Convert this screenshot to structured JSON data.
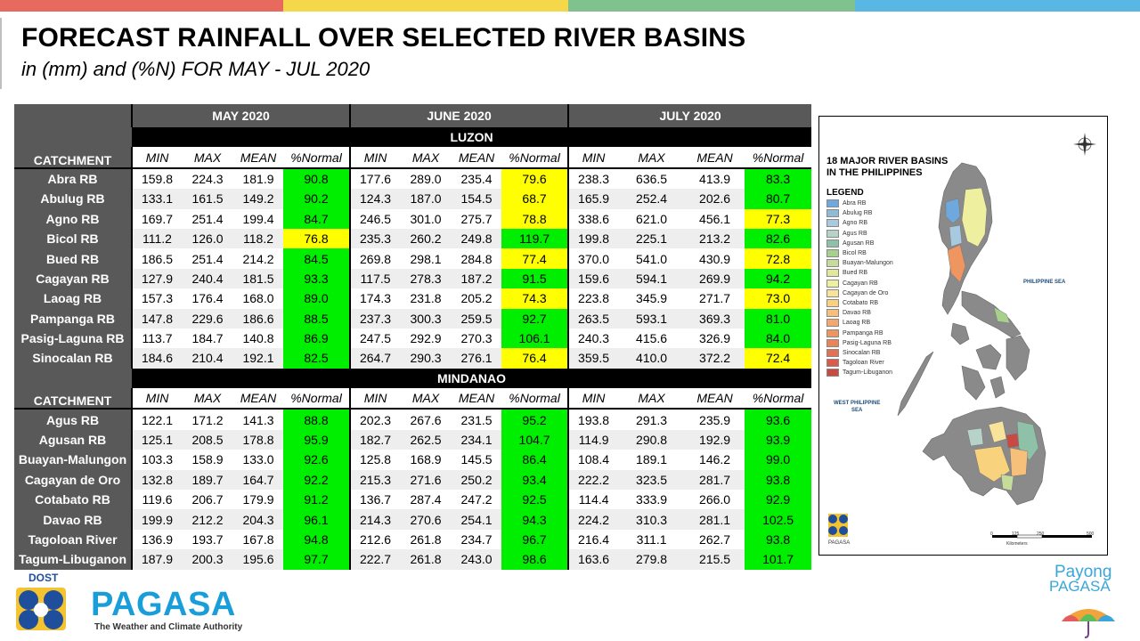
{
  "header": {
    "title": "FORECAST RAINFALL OVER SELECTED RIVER BASINS",
    "subtitle": "in (mm) and (%N) FOR MAY - JUL 2020"
  },
  "colors": {
    "top_bar": [
      "#e86a5f",
      "#f5d84a",
      "#7fc28d",
      "#59b7e4"
    ],
    "above_80_normal": "#00ee00",
    "below_80_normal": "#ffff00",
    "header_gray": "#595959"
  },
  "table": {
    "months": [
      "MAY 2020",
      "JUNE 2020",
      "JULY 2020"
    ],
    "catchment_label": "CATCHMENT",
    "columns": [
      "MIN",
      "MAX",
      "MEAN",
      "%Normal"
    ],
    "luzon": {
      "region": "LUZON",
      "rows": [
        {
          "name": "Abra RB",
          "v": [
            "159.8",
            "224.3",
            "181.9",
            "90.8",
            "177.6",
            "289.0",
            "235.4",
            "79.6",
            "238.3",
            "636.5",
            "413.9",
            "83.3"
          ],
          "c": [
            "g",
            "y",
            "g"
          ]
        },
        {
          "name": "Abulug RB",
          "v": [
            "133.1",
            "161.5",
            "149.2",
            "90.2",
            "124.3",
            "187.0",
            "154.5",
            "68.7",
            "165.9",
            "252.4",
            "202.6",
            "80.7"
          ],
          "c": [
            "g",
            "y",
            "g"
          ]
        },
        {
          "name": "Agno RB",
          "v": [
            "169.7",
            "251.4",
            "199.4",
            "84.7",
            "246.5",
            "301.0",
            "275.7",
            "78.8",
            "338.6",
            "621.0",
            "456.1",
            "77.3"
          ],
          "c": [
            "g",
            "y",
            "y"
          ]
        },
        {
          "name": "Bicol RB",
          "v": [
            "111.2",
            "126.0",
            "118.2",
            "76.8",
            "235.3",
            "260.2",
            "249.8",
            "119.7",
            "199.8",
            "225.1",
            "213.2",
            "82.6"
          ],
          "c": [
            "y",
            "g",
            "g"
          ]
        },
        {
          "name": "Bued RB",
          "v": [
            "186.5",
            "251.4",
            "214.2",
            "84.5",
            "269.8",
            "298.1",
            "284.8",
            "77.4",
            "370.0",
            "541.0",
            "430.9",
            "72.8"
          ],
          "c": [
            "g",
            "y",
            "y"
          ]
        },
        {
          "name": "Cagayan RB",
          "v": [
            "127.9",
            "240.4",
            "181.5",
            "93.3",
            "117.5",
            "278.3",
            "187.2",
            "91.5",
            "159.6",
            "594.1",
            "269.9",
            "94.2"
          ],
          "c": [
            "g",
            "g",
            "g"
          ]
        },
        {
          "name": "Laoag RB",
          "v": [
            "157.3",
            "176.4",
            "168.0",
            "89.0",
            "174.3",
            "231.8",
            "205.2",
            "74.3",
            "223.8",
            "345.9",
            "271.7",
            "73.0"
          ],
          "c": [
            "g",
            "y",
            "y"
          ]
        },
        {
          "name": "Pampanga RB",
          "v": [
            "147.8",
            "229.6",
            "186.6",
            "88.5",
            "237.3",
            "300.3",
            "259.5",
            "92.7",
            "263.5",
            "593.1",
            "369.3",
            "81.0"
          ],
          "c": [
            "g",
            "g",
            "g"
          ]
        },
        {
          "name": "Pasig-Laguna RB",
          "v": [
            "113.7",
            "184.7",
            "140.8",
            "86.9",
            "247.5",
            "292.9",
            "270.3",
            "106.1",
            "240.3",
            "415.6",
            "326.9",
            "84.0"
          ],
          "c": [
            "g",
            "g",
            "g"
          ]
        },
        {
          "name": "Sinocalan RB",
          "v": [
            "184.6",
            "210.4",
            "192.1",
            "82.5",
            "264.7",
            "290.3",
            "276.1",
            "76.4",
            "359.5",
            "410.0",
            "372.2",
            "72.4"
          ],
          "c": [
            "g",
            "y",
            "y"
          ]
        }
      ]
    },
    "mindanao": {
      "region": "MINDANAO",
      "rows": [
        {
          "name": "Agus RB",
          "v": [
            "122.1",
            "171.2",
            "141.3",
            "88.8",
            "202.3",
            "267.6",
            "231.5",
            "95.2",
            "193.8",
            "291.3",
            "235.9",
            "93.6"
          ],
          "c": [
            "g",
            "g",
            "g"
          ]
        },
        {
          "name": "Agusan RB",
          "v": [
            "125.1",
            "208.5",
            "178.8",
            "95.9",
            "182.7",
            "262.5",
            "234.1",
            "104.7",
            "114.9",
            "290.8",
            "192.9",
            "93.9"
          ],
          "c": [
            "g",
            "g",
            "g"
          ]
        },
        {
          "name": "Buayan-Malungon",
          "v": [
            "103.3",
            "158.9",
            "133.0",
            "92.6",
            "125.8",
            "168.9",
            "145.5",
            "86.4",
            "108.4",
            "189.1",
            "146.2",
            "99.0"
          ],
          "c": [
            "g",
            "g",
            "g"
          ]
        },
        {
          "name": "Cagayan de Oro",
          "v": [
            "132.8",
            "189.7",
            "164.7",
            "92.2",
            "215.3",
            "271.6",
            "250.2",
            "93.4",
            "222.2",
            "323.5",
            "281.7",
            "93.8"
          ],
          "c": [
            "g",
            "g",
            "g"
          ]
        },
        {
          "name": "Cotabato RB",
          "v": [
            "119.6",
            "206.7",
            "179.9",
            "91.2",
            "136.7",
            "287.4",
            "247.2",
            "92.5",
            "114.4",
            "333.9",
            "266.0",
            "92.9"
          ],
          "c": [
            "g",
            "g",
            "g"
          ]
        },
        {
          "name": "Davao RB",
          "v": [
            "199.9",
            "212.2",
            "204.3",
            "96.1",
            "214.3",
            "270.6",
            "254.1",
            "94.3",
            "224.2",
            "310.3",
            "281.1",
            "102.5"
          ],
          "c": [
            "g",
            "g",
            "g"
          ]
        },
        {
          "name": "Tagoloan River",
          "v": [
            "136.9",
            "193.7",
            "167.8",
            "94.8",
            "212.6",
            "261.8",
            "234.7",
            "96.7",
            "216.4",
            "311.1",
            "262.7",
            "93.8"
          ],
          "c": [
            "g",
            "g",
            "g"
          ]
        },
        {
          "name": "Tagum-Libuganon",
          "v": [
            "187.9",
            "200.3",
            "195.6",
            "97.7",
            "222.7",
            "261.8",
            "243.0",
            "98.6",
            "163.6",
            "279.8",
            "215.5",
            "101.7"
          ],
          "c": [
            "g",
            "g",
            "g"
          ]
        }
      ]
    }
  },
  "map": {
    "title_line1": "18 MAJOR RIVER BASINS",
    "title_line2": "IN THE PHILIPPINES",
    "legend_title": "LEGEND",
    "legend": [
      {
        "label": "Abra RB",
        "color": "#6fa8dc"
      },
      {
        "label": "Abulug RB",
        "color": "#8fbcd4"
      },
      {
        "label": "Agno RB",
        "color": "#a9c9e0"
      },
      {
        "label": "Agus RB",
        "color": "#b7d3c9"
      },
      {
        "label": "Agusan RB",
        "color": "#8fc1a9"
      },
      {
        "label": "Bicol RB",
        "color": "#a8d08d"
      },
      {
        "label": "Buayan-Malungon",
        "color": "#c5dc9a"
      },
      {
        "label": "Bued RB",
        "color": "#e2e89a"
      },
      {
        "label": "Cagayan RB",
        "color": "#eef0a0"
      },
      {
        "label": "Cagayan de Oro",
        "color": "#f7e49a"
      },
      {
        "label": "Cotabato RB",
        "color": "#f9d27d"
      },
      {
        "label": "Davao RB",
        "color": "#f7c07a"
      },
      {
        "label": "Laoag RB",
        "color": "#f4a96c"
      },
      {
        "label": "Pampanga RB",
        "color": "#ef9560"
      },
      {
        "label": "Pasig-Laguna RB",
        "color": "#ea8358"
      },
      {
        "label": "Sinocalan RB",
        "color": "#e46f52"
      },
      {
        "label": "Tagoloan River",
        "color": "#dc5a4a"
      },
      {
        "label": "Tagum-Libuganon",
        "color": "#c94a43"
      }
    ],
    "sea_east": "PHILIPPINE SEA",
    "sea_west_1": "WEST PHILIPPINE",
    "sea_west_2": "SEA",
    "agency": "PAGASA",
    "scale": [
      "0",
      "125",
      "250",
      "500"
    ],
    "scale_unit": "Kilometers"
  },
  "footer": {
    "dost": "DOST",
    "pagasa": "PAGASA",
    "tagline": "The Weather and Climate Authority",
    "payong_1": "Payong",
    "payong_2": "PAGASA"
  }
}
